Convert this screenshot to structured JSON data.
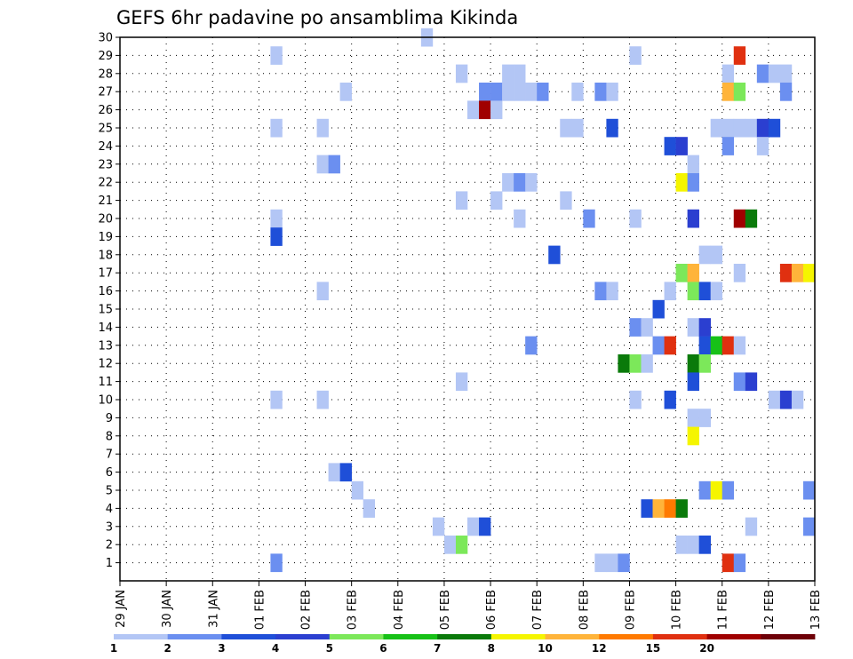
{
  "chart_data": {
    "type": "heatmap",
    "title": "GEFS 6hr padavine po ansamblima Kikinda",
    "xlabel": "",
    "ylabel": "",
    "x_tick_labels": [
      "29 JAN",
      "30 JAN",
      "31 JAN",
      "01 FEB",
      "02 FEB",
      "03 FEB",
      "04 FEB",
      "05 FEB",
      "06 FEB",
      "07 FEB",
      "08 FEB",
      "09 FEB",
      "10 FEB",
      "11 FEB",
      "12 FEB",
      "13 FEB"
    ],
    "y_tick_labels": [
      "1",
      "2",
      "3",
      "4",
      "5",
      "6",
      "7",
      "8",
      "9",
      "10",
      "11",
      "12",
      "13",
      "14",
      "15",
      "16",
      "17",
      "18",
      "19",
      "20",
      "21",
      "22",
      "23",
      "24",
      "25",
      "26",
      "27",
      "28",
      "29",
      "30"
    ],
    "x_unit": "6-hour step",
    "xlim": [
      0,
      60
    ],
    "ylim": [
      0,
      30
    ],
    "grid": true,
    "colorbar": {
      "position": "bottom",
      "labels": [
        "1",
        "2",
        "3",
        "4",
        "5",
        "6",
        "7",
        "8",
        "10",
        "12",
        "15",
        "20"
      ],
      "colors": [
        "#b3c6f5",
        "#6b8ff0",
        "#1f4fd8",
        "#2b3fd0",
        "#7ce85a",
        "#17c117",
        "#0a7a0a",
        "#f5f500",
        "#ffb43a",
        "#ff7a00",
        "#e03010",
        "#a00000",
        "#6e0008"
      ]
    },
    "cells": [
      {
        "step": 27,
        "member": 30,
        "value": 1
      },
      {
        "step": 14,
        "member": 29,
        "value": 1
      },
      {
        "step": 45,
        "member": 29,
        "value": 1
      },
      {
        "step": 54,
        "member": 29,
        "value": 15
      },
      {
        "step": 30,
        "member": 28,
        "value": 1
      },
      {
        "step": 34,
        "member": 28,
        "value": 1
      },
      {
        "step": 35,
        "member": 28,
        "value": 1
      },
      {
        "step": 53,
        "member": 28,
        "value": 1
      },
      {
        "step": 56,
        "member": 28,
        "value": 2
      },
      {
        "step": 57,
        "member": 28,
        "value": 1
      },
      {
        "step": 58,
        "member": 28,
        "value": 1
      },
      {
        "step": 20,
        "member": 27,
        "value": 1
      },
      {
        "step": 32,
        "member": 27,
        "value": 2
      },
      {
        "step": 33,
        "member": 27,
        "value": 2
      },
      {
        "step": 34,
        "member": 27,
        "value": 1
      },
      {
        "step": 35,
        "member": 27,
        "value": 1
      },
      {
        "step": 36,
        "member": 27,
        "value": 1
      },
      {
        "step": 37,
        "member": 27,
        "value": 2
      },
      {
        "step": 40,
        "member": 27,
        "value": 1
      },
      {
        "step": 42,
        "member": 27,
        "value": 2
      },
      {
        "step": 43,
        "member": 27,
        "value": 1
      },
      {
        "step": 53,
        "member": 27,
        "value": 10
      },
      {
        "step": 54,
        "member": 27,
        "value": 5
      },
      {
        "step": 58,
        "member": 27,
        "value": 2
      },
      {
        "step": 31,
        "member": 26,
        "value": 1
      },
      {
        "step": 32,
        "member": 26,
        "value": 20
      },
      {
        "step": 33,
        "member": 26,
        "value": 1
      },
      {
        "step": 14,
        "member": 25,
        "value": 1
      },
      {
        "step": 18,
        "member": 25,
        "value": 1
      },
      {
        "step": 39,
        "member": 25,
        "value": 1
      },
      {
        "step": 40,
        "member": 25,
        "value": 1
      },
      {
        "step": 43,
        "member": 25,
        "value": 3
      },
      {
        "step": 52,
        "member": 25,
        "value": 1
      },
      {
        "step": 53,
        "member": 25,
        "value": 1
      },
      {
        "step": 54,
        "member": 25,
        "value": 1
      },
      {
        "step": 55,
        "member": 25,
        "value": 1
      },
      {
        "step": 56,
        "member": 25,
        "value": 4
      },
      {
        "step": 57,
        "member": 25,
        "value": 3
      },
      {
        "step": 48,
        "member": 24,
        "value": 3
      },
      {
        "step": 49,
        "member": 24,
        "value": 4
      },
      {
        "step": 53,
        "member": 24,
        "value": 2
      },
      {
        "step": 56,
        "member": 24,
        "value": 1
      },
      {
        "step": 18,
        "member": 23,
        "value": 1
      },
      {
        "step": 19,
        "member": 23,
        "value": 2
      },
      {
        "step": 50,
        "member": 23,
        "value": 1
      },
      {
        "step": 34,
        "member": 22,
        "value": 1
      },
      {
        "step": 35,
        "member": 22,
        "value": 2
      },
      {
        "step": 36,
        "member": 22,
        "value": 1
      },
      {
        "step": 49,
        "member": 22,
        "value": 8
      },
      {
        "step": 50,
        "member": 22,
        "value": 2
      },
      {
        "step": 30,
        "member": 21,
        "value": 1
      },
      {
        "step": 33,
        "member": 21,
        "value": 1
      },
      {
        "step": 39,
        "member": 21,
        "value": 1
      },
      {
        "step": 14,
        "member": 20,
        "value": 1
      },
      {
        "step": 35,
        "member": 20,
        "value": 1
      },
      {
        "step": 41,
        "member": 20,
        "value": 2
      },
      {
        "step": 45,
        "member": 20,
        "value": 1
      },
      {
        "step": 50,
        "member": 20,
        "value": 4
      },
      {
        "step": 54,
        "member": 20,
        "value": 20
      },
      {
        "step": 55,
        "member": 20,
        "value": 7
      },
      {
        "step": 14,
        "member": 19,
        "value": 3
      },
      {
        "step": 38,
        "member": 18,
        "value": 3
      },
      {
        "step": 51,
        "member": 18,
        "value": 1
      },
      {
        "step": 52,
        "member": 18,
        "value": 1
      },
      {
        "step": 49,
        "member": 17,
        "value": 5
      },
      {
        "step": 50,
        "member": 17,
        "value": 10
      },
      {
        "step": 54,
        "member": 17,
        "value": 1
      },
      {
        "step": 58,
        "member": 17,
        "value": 15
      },
      {
        "step": 59,
        "member": 17,
        "value": 10
      },
      {
        "step": 60,
        "member": 17,
        "value": 8
      },
      {
        "step": 18,
        "member": 16,
        "value": 1
      },
      {
        "step": 42,
        "member": 16,
        "value": 2
      },
      {
        "step": 43,
        "member": 16,
        "value": 1
      },
      {
        "step": 48,
        "member": 16,
        "value": 1
      },
      {
        "step": 50,
        "member": 16,
        "value": 5
      },
      {
        "step": 51,
        "member": 16,
        "value": 3
      },
      {
        "step": 52,
        "member": 16,
        "value": 1
      },
      {
        "step": 47,
        "member": 15,
        "value": 3
      },
      {
        "step": 45,
        "member": 14,
        "value": 2
      },
      {
        "step": 46,
        "member": 14,
        "value": 1
      },
      {
        "step": 50,
        "member": 14,
        "value": 1
      },
      {
        "step": 51,
        "member": 14,
        "value": 4
      },
      {
        "step": 36,
        "member": 13,
        "value": 2
      },
      {
        "step": 47,
        "member": 13,
        "value": 2
      },
      {
        "step": 48,
        "member": 13,
        "value": 15
      },
      {
        "step": 51,
        "member": 13,
        "value": 3
      },
      {
        "step": 52,
        "member": 13,
        "value": 6
      },
      {
        "step": 53,
        "member": 13,
        "value": 15
      },
      {
        "step": 54,
        "member": 13,
        "value": 1
      },
      {
        "step": 44,
        "member": 12,
        "value": 7
      },
      {
        "step": 45,
        "member": 12,
        "value": 5
      },
      {
        "step": 46,
        "member": 12,
        "value": 1
      },
      {
        "step": 50,
        "member": 12,
        "value": 7
      },
      {
        "step": 51,
        "member": 12,
        "value": 5
      },
      {
        "step": 30,
        "member": 11,
        "value": 1
      },
      {
        "step": 50,
        "member": 11,
        "value": 3
      },
      {
        "step": 54,
        "member": 11,
        "value": 2
      },
      {
        "step": 55,
        "member": 11,
        "value": 4
      },
      {
        "step": 14,
        "member": 10,
        "value": 1
      },
      {
        "step": 18,
        "member": 10,
        "value": 1
      },
      {
        "step": 45,
        "member": 10,
        "value": 1
      },
      {
        "step": 48,
        "member": 10,
        "value": 3
      },
      {
        "step": 57,
        "member": 10,
        "value": 1
      },
      {
        "step": 58,
        "member": 10,
        "value": 4
      },
      {
        "step": 59,
        "member": 10,
        "value": 1
      },
      {
        "step": 50,
        "member": 9,
        "value": 1
      },
      {
        "step": 51,
        "member": 9,
        "value": 1
      },
      {
        "step": 50,
        "member": 8,
        "value": 8
      },
      {
        "step": 19,
        "member": 6,
        "value": 1
      },
      {
        "step": 20,
        "member": 6,
        "value": 3
      },
      {
        "step": 21,
        "member": 5,
        "value": 1
      },
      {
        "step": 51,
        "member": 5,
        "value": 2
      },
      {
        "step": 52,
        "member": 5,
        "value": 8
      },
      {
        "step": 53,
        "member": 5,
        "value": 2
      },
      {
        "step": 60,
        "member": 5,
        "value": 2
      },
      {
        "step": 22,
        "member": 4,
        "value": 1
      },
      {
        "step": 46,
        "member": 4,
        "value": 3
      },
      {
        "step": 47,
        "member": 4,
        "value": 10
      },
      {
        "step": 48,
        "member": 4,
        "value": 12
      },
      {
        "step": 49,
        "member": 4,
        "value": 7
      },
      {
        "step": 28,
        "member": 3,
        "value": 1
      },
      {
        "step": 31,
        "member": 3,
        "value": 1
      },
      {
        "step": 32,
        "member": 3,
        "value": 3
      },
      {
        "step": 55,
        "member": 3,
        "value": 1
      },
      {
        "step": 60,
        "member": 3,
        "value": 2
      },
      {
        "step": 29,
        "member": 2,
        "value": 1
      },
      {
        "step": 30,
        "member": 2,
        "value": 5
      },
      {
        "step": 49,
        "member": 2,
        "value": 1
      },
      {
        "step": 50,
        "member": 2,
        "value": 1
      },
      {
        "step": 51,
        "member": 2,
        "value": 3
      },
      {
        "step": 14,
        "member": 1,
        "value": 2
      },
      {
        "step": 42,
        "member": 1,
        "value": 1
      },
      {
        "step": 43,
        "member": 1,
        "value": 1
      },
      {
        "step": 44,
        "member": 1,
        "value": 2
      },
      {
        "step": 53,
        "member": 1,
        "value": 15
      },
      {
        "step": 54,
        "member": 1,
        "value": 2
      }
    ]
  }
}
